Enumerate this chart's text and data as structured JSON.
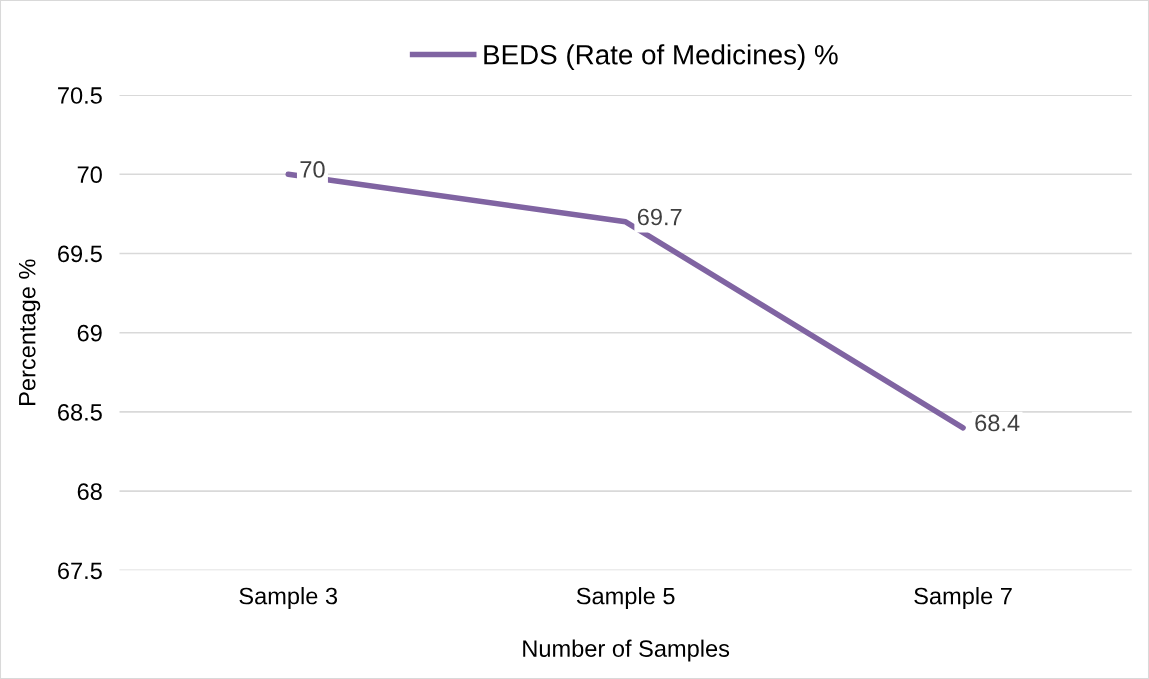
{
  "chart_data": {
    "type": "line",
    "xlabel": "Number of Samples",
    "ylabel": "Percentage %",
    "categories": [
      "Sample 3",
      "Sample 5",
      "Sample 7"
    ],
    "series": [
      {
        "name": "BEDS (Rate of Medicines) %",
        "color": "#8064a2",
        "values": [
          70,
          69.7,
          68.4
        ]
      }
    ],
    "ylim": [
      67.5,
      70.5
    ],
    "yticks": [
      67.5,
      68,
      68.5,
      69,
      69.5,
      70,
      70.5
    ],
    "grid": "y",
    "legend": "top",
    "data_labels": true,
    "marker": "none",
    "line_style": "solid"
  }
}
